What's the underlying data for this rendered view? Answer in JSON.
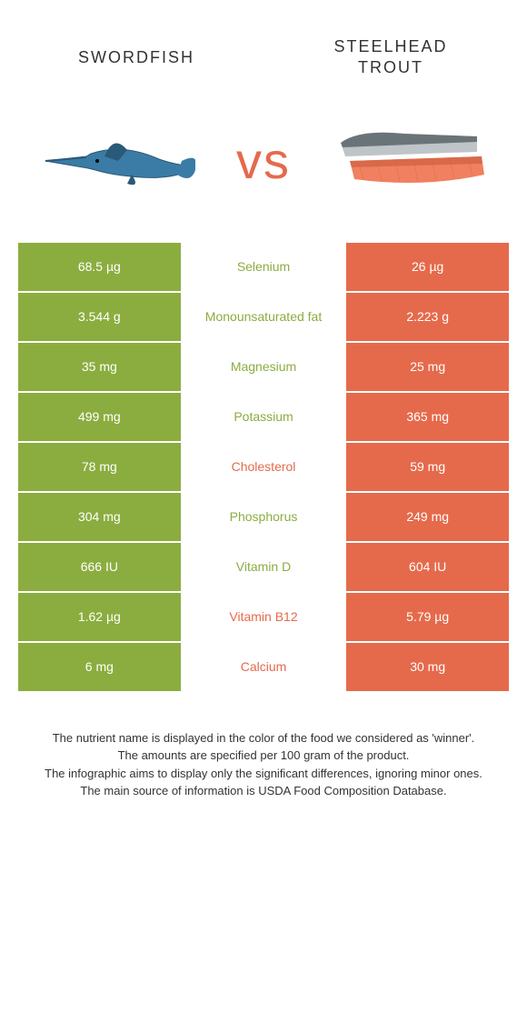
{
  "colors": {
    "green": "#8bad3f",
    "orange": "#e56a4b",
    "background": "#ffffff",
    "text": "#333333"
  },
  "header": {
    "left_title": "Swordfish",
    "right_title": "Steelhead trout",
    "vs": "vs"
  },
  "table": {
    "rows": [
      {
        "left": "68.5 µg",
        "label": "Selenium",
        "right": "26 µg",
        "winner": "green"
      },
      {
        "left": "3.544 g",
        "label": "Monounsaturated fat",
        "right": "2.223 g",
        "winner": "green"
      },
      {
        "left": "35 mg",
        "label": "Magnesium",
        "right": "25 mg",
        "winner": "green"
      },
      {
        "left": "499 mg",
        "label": "Potassium",
        "right": "365 mg",
        "winner": "green"
      },
      {
        "left": "78 mg",
        "label": "Cholesterol",
        "right": "59 mg",
        "winner": "orange"
      },
      {
        "left": "304 mg",
        "label": "Phosphorus",
        "right": "249 mg",
        "winner": "green"
      },
      {
        "left": "666 IU",
        "label": "Vitamin D",
        "right": "604 IU",
        "winner": "green"
      },
      {
        "left": "1.62 µg",
        "label": "Vitamin B12",
        "right": "5.79 µg",
        "winner": "orange"
      },
      {
        "left": "6 mg",
        "label": "Calcium",
        "right": "30 mg",
        "winner": "orange"
      }
    ]
  },
  "footer": {
    "line1": "The nutrient name is displayed in the color of the food we considered as 'winner'.",
    "line2": "The amounts are specified per 100 gram of the product.",
    "line3": "The infographic aims to display only the significant differences, ignoring minor ones.",
    "line4": "The main source of information is USDA Food Composition Database."
  }
}
